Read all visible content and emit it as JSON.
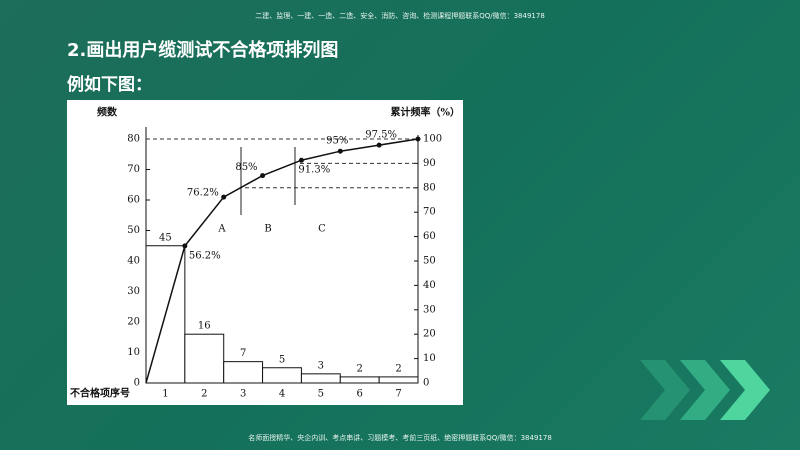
{
  "header": {
    "banner": "二建、监理、一建、一造、二造、安全、消防、咨询、检测课程押题联系QQ/微信：3849178"
  },
  "title": "2.画出用户缆测试不合格项排列图",
  "subtitle": "例如下图：",
  "footer": {
    "banner": "名师面授精华、央企内训、考点串讲、习题模考、考前三页纸、绝密押题联系QQ/微信：3849178"
  },
  "chart_data": {
    "type": "pareto",
    "ylabel": "频数",
    "y2label": "累计频率（%）",
    "xlabel": "不合格项序号",
    "categories": [
      "1",
      "2",
      "3",
      "4",
      "5",
      "6",
      "7"
    ],
    "series": [
      {
        "name": "频数",
        "color": "#ffffff",
        "values": [
          45,
          16,
          7,
          5,
          3,
          2,
          2
        ]
      },
      {
        "name": "累计频率",
        "color": "#111111",
        "axis": "y2",
        "values": [
          56.2,
          76.2,
          85,
          91.3,
          95,
          97.5,
          100
        ],
        "value_labels": [
          "56.2%",
          "76.2%",
          "85%",
          "91.3%",
          "95%",
          "97.5%",
          null
        ]
      }
    ],
    "sections": [
      "A",
      "B",
      "C"
    ],
    "y2_reference_lines": [
      80,
      90,
      100
    ],
    "ylim": [
      0,
      80
    ],
    "yticks": [
      0,
      10,
      20,
      30,
      40,
      50,
      60,
      70,
      80
    ],
    "y2lim": [
      0,
      100
    ],
    "y2ticks": [
      0,
      10,
      20,
      30,
      40,
      50,
      60,
      70,
      80,
      90,
      100
    ]
  }
}
